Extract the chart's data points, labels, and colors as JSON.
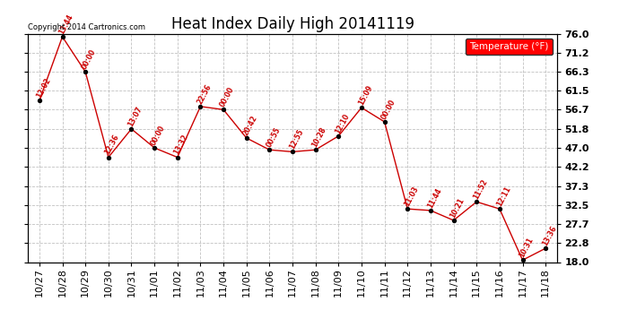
{
  "title": "Heat Index Daily High 20141119",
  "copyright": "Copyright 2014 Cartronics.com",
  "legend_label": "Temperature (°F)",
  "x_labels": [
    "10/27",
    "10/28",
    "10/29",
    "10/30",
    "10/31",
    "11/01",
    "11/02",
    "11/03",
    "11/04",
    "11/05",
    "11/06",
    "11/07",
    "11/08",
    "11/09",
    "11/10",
    "11/11",
    "11/12",
    "11/13",
    "11/14",
    "11/15",
    "11/16",
    "11/17",
    "11/18"
  ],
  "y_values": [
    59.0,
    75.2,
    66.3,
    44.6,
    51.8,
    47.0,
    44.6,
    57.5,
    56.7,
    49.5,
    46.5,
    46.0,
    46.5,
    50.0,
    57.2,
    53.6,
    31.5,
    31.1,
    28.6,
    33.3,
    31.5,
    18.5,
    21.5
  ],
  "point_labels": [
    "12:02",
    "13:44",
    "00:00",
    "12:36",
    "13:07",
    "00:00",
    "13:32",
    "22:56",
    "00:00",
    "20:42",
    "00:55",
    "12:55",
    "10:28",
    "12:10",
    "15:09",
    "00:00",
    "11:03",
    "11:44",
    "10:21",
    "11:52",
    "12:11",
    "10:31",
    "13:36"
  ],
  "ylim_min": 18.0,
  "ylim_max": 76.0,
  "yticks": [
    18.0,
    22.8,
    27.7,
    32.5,
    37.3,
    42.2,
    47.0,
    51.8,
    56.7,
    61.5,
    66.3,
    71.2,
    76.0
  ],
  "line_color": "#CC0000",
  "point_color": "#000000",
  "label_color": "#CC0000",
  "background_color": "#ffffff",
  "grid_color": "#bbbbbb",
  "title_fontsize": 12,
  "tick_fontsize": 8,
  "legend_bg": "#ff0000",
  "legend_fg": "#ffffff"
}
